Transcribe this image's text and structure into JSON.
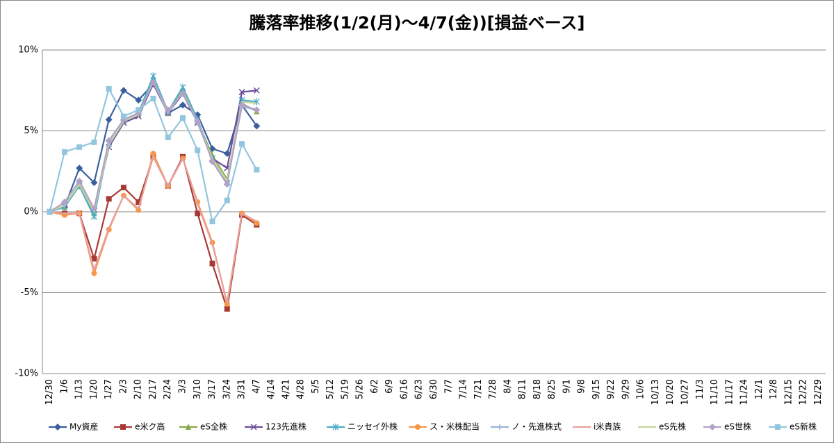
{
  "chart_data": {
    "type": "line",
    "title": "騰落率推移(1/2(月)～4/7(金))[損益ベース]",
    "categories": [
      "12/30",
      "1/6",
      "1/13",
      "1/20",
      "1/27",
      "2/3",
      "2/10",
      "2/17",
      "2/24",
      "3/3",
      "3/10",
      "3/17",
      "3/24",
      "3/31",
      "4/7",
      "4/14",
      "4/21",
      "4/28",
      "5/5",
      "5/12",
      "5/19",
      "5/26",
      "6/2",
      "6/9",
      "6/16",
      "6/23",
      "6/30",
      "7/7",
      "7/14",
      "7/21",
      "7/28",
      "8/4",
      "8/11",
      "8/18",
      "8/25",
      "9/1",
      "9/8",
      "9/15",
      "9/22",
      "9/29",
      "10/6",
      "10/13",
      "10/20",
      "10/27",
      "11/3",
      "11/10",
      "11/17",
      "11/24",
      "12/1",
      "12/8",
      "12/15",
      "12/22",
      "12/29"
    ],
    "ylim": [
      -10,
      10
    ],
    "yticks": [
      {
        "value": -10,
        "label": "-10%"
      },
      {
        "value": -5,
        "label": "-5%"
      },
      {
        "value": 0,
        "label": "0%"
      },
      {
        "value": 5,
        "label": "5%"
      },
      {
        "value": 10,
        "label": "10%"
      }
    ],
    "grid": true,
    "legend": "bottom",
    "series": [
      {
        "name": "My資産",
        "color": "#3a5f9e",
        "marker": "diamond",
        "values": [
          0,
          0.3,
          2.7,
          1.8,
          5.7,
          7.5,
          6.9,
          7.9,
          6.1,
          6.6,
          6.0,
          3.9,
          3.6,
          6.6,
          5.3,
          null,
          null,
          null,
          null,
          null,
          null,
          null,
          null,
          null,
          null,
          null,
          null,
          null,
          null,
          null,
          null,
          null,
          null,
          null,
          null,
          null,
          null,
          null,
          null,
          null,
          null,
          null,
          null,
          null,
          null,
          null,
          null,
          null,
          null,
          null,
          null,
          null,
          null
        ]
      },
      {
        "name": "e米ク高",
        "color": "#a83a36",
        "marker": "square",
        "values": [
          0,
          -0.1,
          -0.1,
          -2.9,
          0.8,
          1.5,
          0.6,
          3.4,
          1.6,
          3.4,
          -0.1,
          -3.2,
          -6.0,
          -0.2,
          -0.8,
          null,
          null,
          null,
          null,
          null,
          null,
          null,
          null,
          null,
          null,
          null,
          null,
          null,
          null,
          null,
          null,
          null,
          null,
          null,
          null,
          null,
          null,
          null,
          null,
          null,
          null,
          null,
          null,
          null,
          null,
          null,
          null,
          null,
          null,
          null,
          null,
          null,
          null
        ]
      },
      {
        "name": "eS全株",
        "color": "#86a844",
        "marker": "triangle",
        "values": [
          0,
          0.3,
          1.6,
          -0.1,
          4.2,
          5.6,
          6.0,
          8.2,
          6.1,
          7.5,
          5.6,
          3.5,
          2.0,
          6.7,
          6.2,
          null,
          null,
          null,
          null,
          null,
          null,
          null,
          null,
          null,
          null,
          null,
          null,
          null,
          null,
          null,
          null,
          null,
          null,
          null,
          null,
          null,
          null,
          null,
          null,
          null,
          null,
          null,
          null,
          null,
          null,
          null,
          null,
          null,
          null,
          null,
          null,
          null,
          null
        ]
      },
      {
        "name": "123先進株",
        "color": "#6b4c9a",
        "marker": "x",
        "values": [
          0,
          0.4,
          1.7,
          0.1,
          4.0,
          5.5,
          5.9,
          7.9,
          6.1,
          7.3,
          5.5,
          3.3,
          2.7,
          7.4,
          7.5,
          null,
          null,
          null,
          null,
          null,
          null,
          null,
          null,
          null,
          null,
          null,
          null,
          null,
          null,
          null,
          null,
          null,
          null,
          null,
          null,
          null,
          null,
          null,
          null,
          null,
          null,
          null,
          null,
          null,
          null,
          null,
          null,
          null,
          null,
          null,
          null,
          null,
          null
        ]
      },
      {
        "name": "ニッセイ外株",
        "color": "#4bacc6",
        "marker": "asterisk",
        "values": [
          0,
          0.3,
          1.6,
          -0.3,
          4.2,
          5.7,
          6.1,
          8.4,
          6.2,
          7.7,
          5.7,
          3.3,
          1.8,
          6.9,
          6.8,
          null,
          null,
          null,
          null,
          null,
          null,
          null,
          null,
          null,
          null,
          null,
          null,
          null,
          null,
          null,
          null,
          null,
          null,
          null,
          null,
          null,
          null,
          null,
          null,
          null,
          null,
          null,
          null,
          null,
          null,
          null,
          null,
          null,
          null,
          null,
          null,
          null,
          null
        ]
      },
      {
        "name": "ス・米株配当",
        "color": "#f79646",
        "marker": "circle",
        "values": [
          0,
          -0.2,
          -0.1,
          -3.8,
          -1.1,
          1.0,
          0.1,
          3.6,
          1.6,
          3.3,
          0.6,
          -1.9,
          -5.7,
          -0.1,
          -0.7,
          null,
          null,
          null,
          null,
          null,
          null,
          null,
          null,
          null,
          null,
          null,
          null,
          null,
          null,
          null,
          null,
          null,
          null,
          null,
          null,
          null,
          null,
          null,
          null,
          null,
          null,
          null,
          null,
          null,
          null,
          null,
          null,
          null,
          null,
          null,
          null,
          null,
          null
        ]
      },
      {
        "name": "ノ・先進株式",
        "color": "#95b3d7",
        "marker": "plus",
        "values": [
          0,
          0.4,
          1.7,
          0.1,
          4.1,
          5.6,
          6.0,
          8.0,
          6.1,
          7.4,
          5.5,
          3.2,
          1.9,
          6.5,
          6.3,
          null,
          null,
          null,
          null,
          null,
          null,
          null,
          null,
          null,
          null,
          null,
          null,
          null,
          null,
          null,
          null,
          null,
          null,
          null,
          null,
          null,
          null,
          null,
          null,
          null,
          null,
          null,
          null,
          null,
          null,
          null,
          null,
          null,
          null,
          null,
          null,
          null,
          null
        ]
      },
      {
        "name": "i米貴族",
        "color": "#e6a0a0",
        "marker": "none",
        "values": [
          0,
          -0.1,
          -0.1,
          -3.6,
          -1.0,
          1.0,
          0.2,
          3.4,
          1.6,
          3.3,
          0.5,
          -2.0,
          -5.6,
          -0.1,
          -0.6,
          null,
          null,
          null,
          null,
          null,
          null,
          null,
          null,
          null,
          null,
          null,
          null,
          null,
          null,
          null,
          null,
          null,
          null,
          null,
          null,
          null,
          null,
          null,
          null,
          null,
          null,
          null,
          null,
          null,
          null,
          null,
          null,
          null,
          null,
          null,
          null,
          null,
          null
        ]
      },
      {
        "name": "eS先株",
        "color": "#c3d69b",
        "marker": "none",
        "values": [
          0,
          0.4,
          1.7,
          0.0,
          4.2,
          5.6,
          6.0,
          8.1,
          6.2,
          7.4,
          5.6,
          3.3,
          1.9,
          6.8,
          6.7,
          null,
          null,
          null,
          null,
          null,
          null,
          null,
          null,
          null,
          null,
          null,
          null,
          null,
          null,
          null,
          null,
          null,
          null,
          null,
          null,
          null,
          null,
          null,
          null,
          null,
          null,
          null,
          null,
          null,
          null,
          null,
          null,
          null,
          null,
          null,
          null,
          null,
          null
        ]
      },
      {
        "name": "eS世株",
        "color": "#b3a2c7",
        "marker": "diamond",
        "values": [
          0,
          0.6,
          1.9,
          0.2,
          4.4,
          5.7,
          6.1,
          8.0,
          6.3,
          7.3,
          5.6,
          3.1,
          1.7,
          6.6,
          6.3,
          null,
          null,
          null,
          null,
          null,
          null,
          null,
          null,
          null,
          null,
          null,
          null,
          null,
          null,
          null,
          null,
          null,
          null,
          null,
          null,
          null,
          null,
          null,
          null,
          null,
          null,
          null,
          null,
          null,
          null,
          null,
          null,
          null,
          null,
          null,
          null,
          null,
          null
        ]
      },
      {
        "name": "eS新株",
        "color": "#92c5de",
        "marker": "square",
        "values": [
          0,
          3.7,
          4.0,
          4.3,
          7.6,
          5.9,
          6.3,
          7.0,
          4.6,
          5.8,
          3.8,
          -0.6,
          0.7,
          4.2,
          2.6,
          null,
          null,
          null,
          null,
          null,
          null,
          null,
          null,
          null,
          null,
          null,
          null,
          null,
          null,
          null,
          null,
          null,
          null,
          null,
          null,
          null,
          null,
          null,
          null,
          null,
          null,
          null,
          null,
          null,
          null,
          null,
          null,
          null,
          null,
          null,
          null,
          null,
          null
        ]
      }
    ]
  }
}
